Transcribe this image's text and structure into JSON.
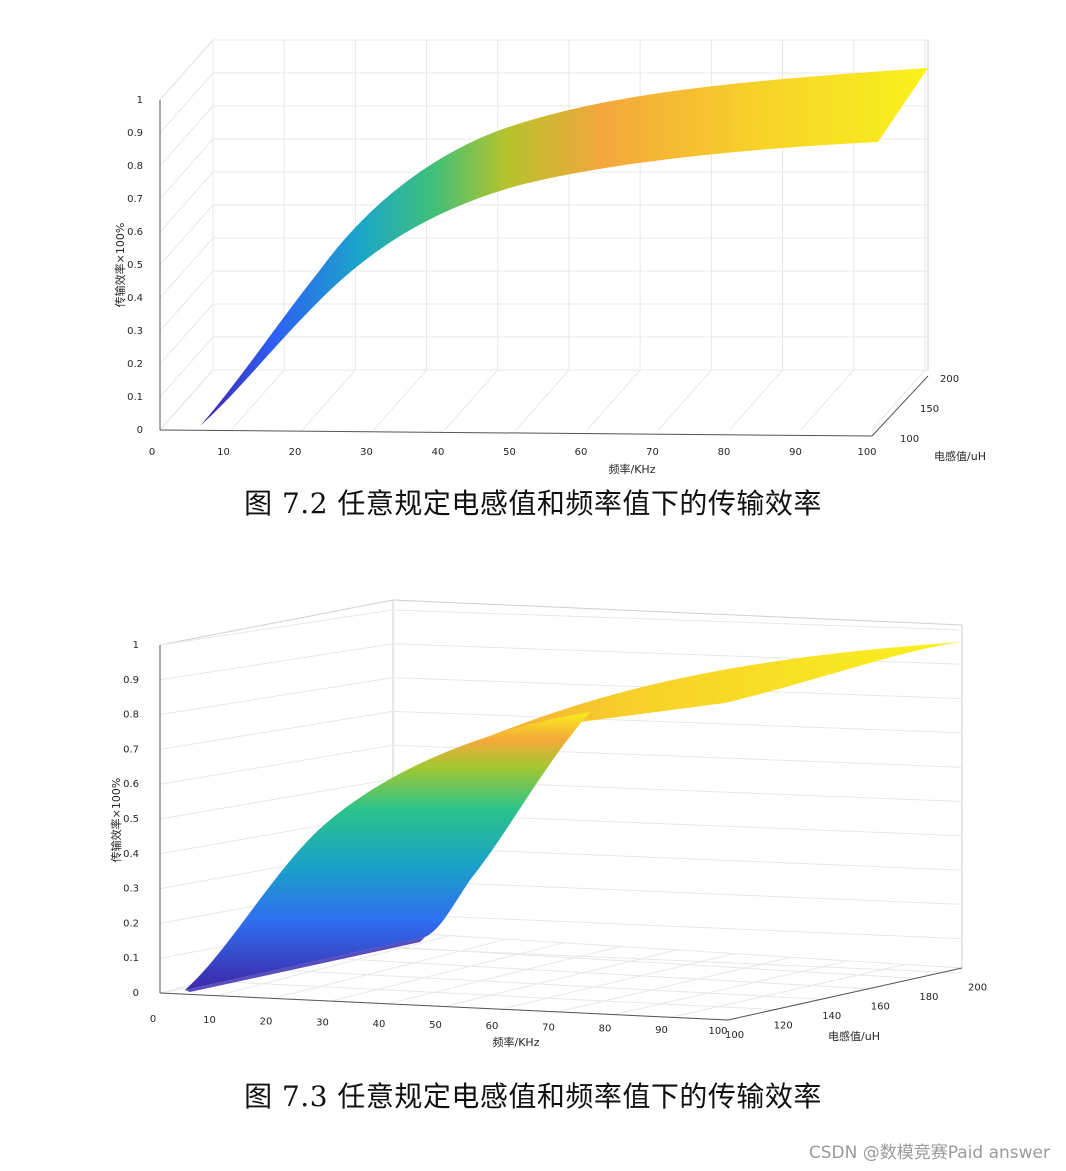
{
  "figures": [
    {
      "caption": "图 7.2  任意规定电感值和频率值下的传输效率",
      "chart_data": {
        "type": "surface",
        "title": "",
        "xlabel": "频率/KHz",
        "ylabel": "电感值/uH",
        "zlabel": "传输效率×100%",
        "x_ticks": [
          "0",
          "10",
          "20",
          "30",
          "40",
          "50",
          "60",
          "70",
          "80",
          "90",
          "100"
        ],
        "y_ticks": [
          "100",
          "150",
          "200"
        ],
        "z_ticks": [
          "0",
          "0.1",
          "0.2",
          "0.3",
          "0.4",
          "0.5",
          "0.6",
          "0.7",
          "0.8",
          "0.9",
          "1"
        ],
        "xlim": [
          0,
          100
        ],
        "ylim": [
          100,
          200
        ],
        "zlim": [
          0,
          1
        ],
        "colormap": [
          "#3e26a8",
          "#2f6ff0",
          "#1aa2c7",
          "#2bc38a",
          "#a2c731",
          "#f5a93a",
          "#f9ef1c"
        ],
        "series": [
          {
            "x": [
              5,
              10,
              15,
              20,
              25,
              30,
              35,
              40,
              45,
              50,
              55,
              60,
              65,
              70,
              75,
              80,
              85,
              90,
              95,
              100
            ],
            "values": [
              0.05,
              0.12,
              0.2,
              0.3,
              0.4,
              0.49,
              0.57,
              0.63,
              0.68,
              0.72,
              0.75,
              0.78,
              0.8,
              0.82,
              0.83,
              0.85,
              0.86,
              0.87,
              0.88,
              0.88
            ]
          },
          {
            "x": [
              5,
              10,
              15,
              20,
              25,
              30,
              35,
              40,
              45,
              50,
              55,
              60,
              65,
              70,
              75,
              80,
              85,
              90,
              95,
              100
            ],
            "values": [
              0.05,
              0.15,
              0.26,
              0.38,
              0.49,
              0.59,
              0.67,
              0.73,
              0.78,
              0.82,
              0.85,
              0.87,
              0.89,
              0.91,
              0.92,
              0.93,
              0.94,
              0.95,
              0.96,
              0.97
            ]
          }
        ],
        "grid": true,
        "view": "3d"
      }
    },
    {
      "caption": "图 7.3  任意规定电感值和频率值下的传输效率",
      "chart_data": {
        "type": "surface",
        "title": "",
        "xlabel": "频率/KHz",
        "ylabel": "电感值/uH",
        "zlabel": "传输效率×100%",
        "x_ticks": [
          "0",
          "10",
          "20",
          "30",
          "40",
          "50",
          "60",
          "70",
          "80",
          "90",
          "100"
        ],
        "y_ticks": [
          "100",
          "120",
          "140",
          "160",
          "180",
          "200"
        ],
        "z_ticks": [
          "0",
          "0.1",
          "0.2",
          "0.3",
          "0.4",
          "0.5",
          "0.6",
          "0.7",
          "0.8",
          "0.9",
          "1"
        ],
        "xlim": [
          0,
          100
        ],
        "ylim": [
          100,
          200
        ],
        "zlim": [
          0,
          1
        ],
        "colormap": [
          "#3e26a8",
          "#2f6ff0",
          "#1aa2c7",
          "#2bc38a",
          "#a2c731",
          "#f5a93a",
          "#f9ef1c"
        ],
        "series": [
          {
            "x": [
              5,
              10,
              20,
              30,
              40,
              50,
              60,
              70,
              80,
              90,
              100
            ],
            "values": [
              0.03,
              0.1,
              0.3,
              0.5,
              0.62,
              0.7,
              0.76,
              0.81,
              0.86,
              0.92,
              1.0
            ]
          },
          {
            "x": [
              5,
              10,
              20,
              30,
              40,
              50,
              60,
              70,
              80,
              90,
              100
            ],
            "values": [
              0.1,
              0.15,
              0.45,
              0.7,
              0.8,
              0.84,
              0.86,
              0.88,
              0.9,
              0.94,
              1.0
            ]
          }
        ],
        "grid": true,
        "view": "3d"
      }
    }
  ],
  "watermark": "CSDN @数模竞赛Paid answer"
}
